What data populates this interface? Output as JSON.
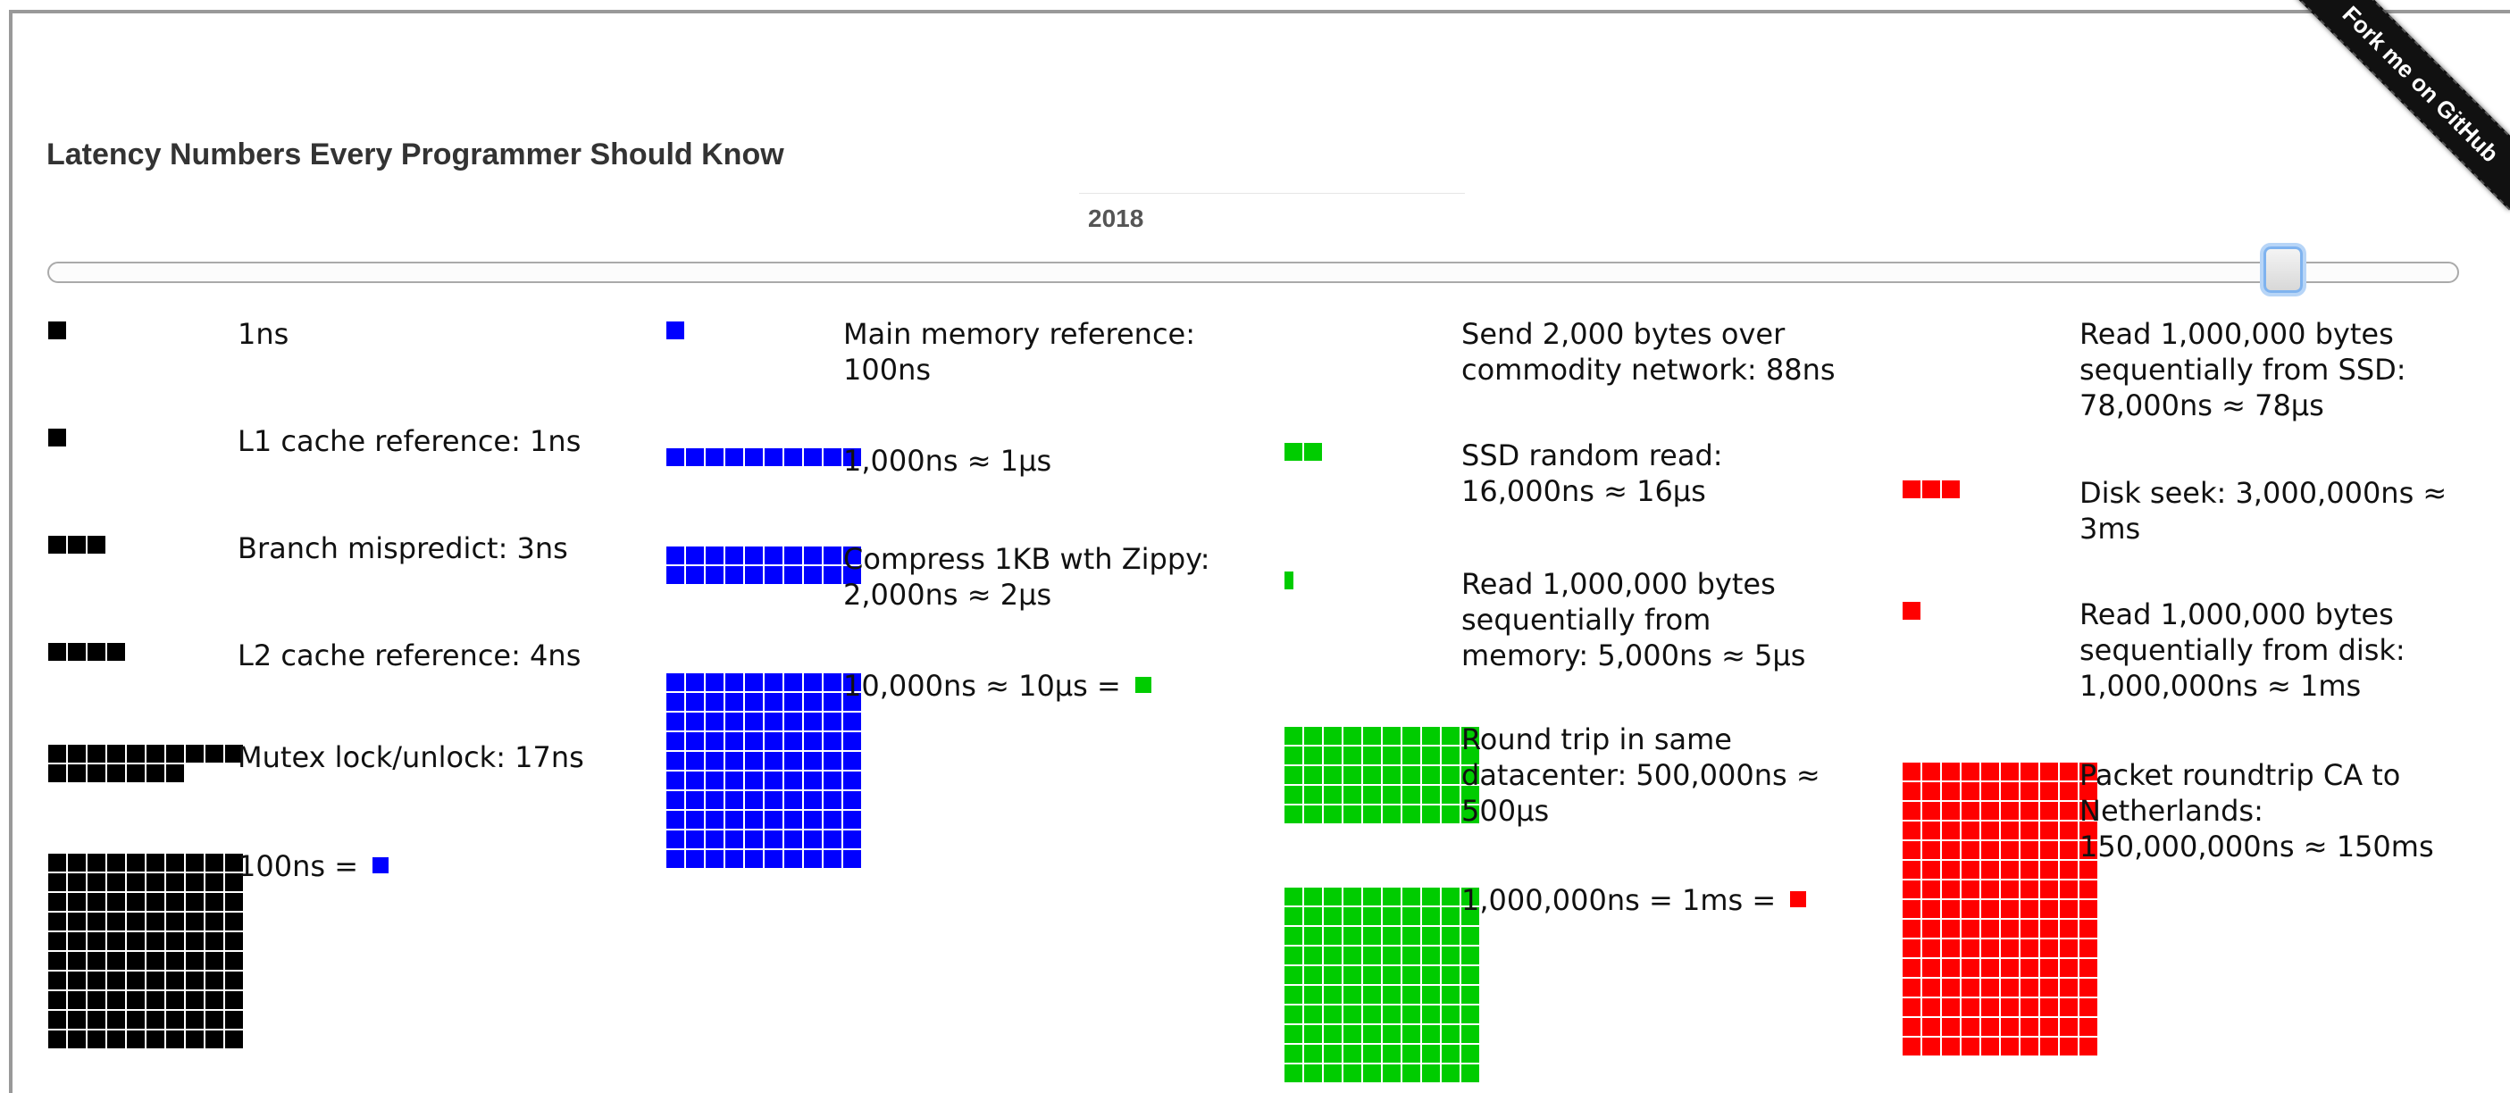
{
  "page": {
    "title": "Latency Numbers Every Programmer Should Know",
    "year": "2018",
    "ribbon": "Fork me on GitHub",
    "slider_level": 0.934
  },
  "colors": {
    "ns": "#000000",
    "us": "#0000ff",
    "ms_green": "#00cc00",
    "ms_red": "#ff0000"
  },
  "columns": [
    {
      "items": [
        {
          "label": "1ns",
          "color": "ns",
          "count": 1,
          "full_cols": 0
        },
        {
          "label": "L1 cache reference: 1ns",
          "color": "ns",
          "count": 1
        },
        {
          "label": "Branch mispredict: 3ns",
          "color": "ns",
          "count": 3
        },
        {
          "label": "L2 cache reference: 4ns",
          "color": "ns",
          "count": 4
        },
        {
          "label": "Mutex lock/unlock: 17ns",
          "color": "ns",
          "count": 17
        },
        {
          "label": "100ns = ",
          "color": "ns",
          "count": 100,
          "eq_color": "us"
        }
      ]
    },
    {
      "items": [
        {
          "label": "Main memory reference: 100ns",
          "color": "us",
          "count": 1
        },
        {
          "label": "1,000ns ≈ 1μs",
          "color": "us",
          "count": 10
        },
        {
          "label": "Compress 1KB wth Zippy: 2,000ns ≈ 2μs",
          "color": "us",
          "count": 20
        },
        {
          "label": "10,000ns ≈ 10μs = ",
          "color": "us",
          "count": 100,
          "eq_color": "ms_green"
        }
      ]
    },
    {
      "items": [
        {
          "label": "Send 2,000 bytes over commodity network: 88ns",
          "color": "ms_green",
          "count": 0
        },
        {
          "label": "SSD random read: 16,000ns ≈ 16μs",
          "color": "ms_green",
          "count": 2
        },
        {
          "label": "Read 1,000,000 bytes sequentially from memory: 5,000ns ≈ 5μs",
          "color": "ms_green",
          "count": 0.5
        },
        {
          "label": "Round trip in same datacenter: 500,000ns ≈ 500μs",
          "color": "ms_green",
          "count": 50
        },
        {
          "label": "1,000,000ns = 1ms = ",
          "color": "ms_green",
          "count": 100,
          "eq_color": "ms_red"
        }
      ]
    },
    {
      "items": [
        {
          "label": "Read 1,000,000 bytes sequentially from SSD: 78,000ns ≈ 78μs",
          "color": "ms_green",
          "count": 0
        },
        {
          "label": "Disk seek: 3,000,000ns ≈ 3ms",
          "color": "ms_red",
          "count": 3
        },
        {
          "label": "Read 1,000,000 bytes sequentially from disk: 1,000,000ns ≈ 1ms",
          "color": "ms_red",
          "count": 1
        },
        {
          "label": "Packet roundtrip CA to Netherlands: 150,000,000ns ≈ 150ms",
          "color": "ms_red",
          "count": 150
        }
      ]
    }
  ]
}
